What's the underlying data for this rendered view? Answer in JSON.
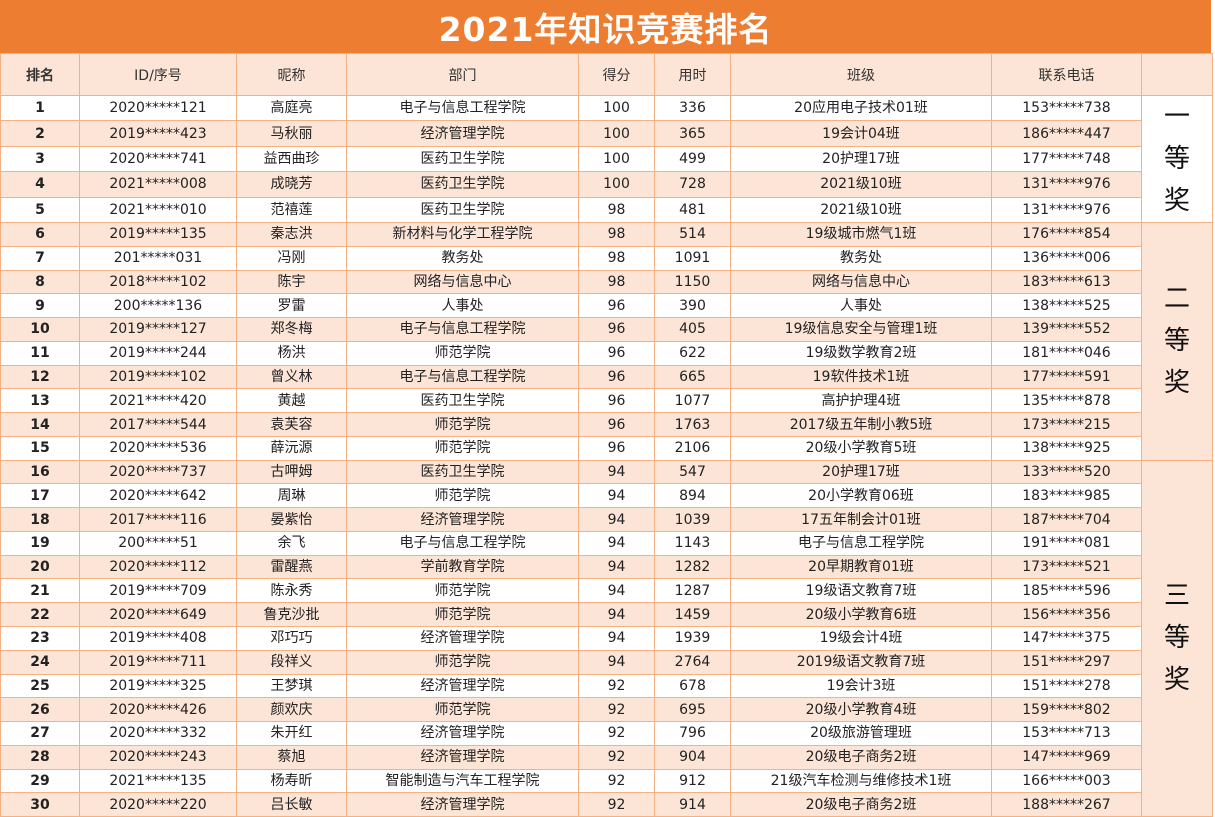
{
  "title": "2021年知识竞赛排名",
  "headers": {
    "rank": "排名",
    "id": "ID/序号",
    "name": "昵称",
    "dept": "部门",
    "score": "得分",
    "time": "用时",
    "class": "班级",
    "phone": "联系电话",
    "award": ""
  },
  "awards": {
    "first": "一\n等\n奖",
    "second": "二\n等\n奖",
    "third": "三\n等\n奖"
  },
  "rows": [
    {
      "rank": "1",
      "id": "2020*****121",
      "name": "高庭亮",
      "dept": "电子与信息工程学院",
      "score": "100",
      "time": "336",
      "class": "20应用电子技术01班",
      "phone": "153*****738"
    },
    {
      "rank": "2",
      "id": "2019*****423",
      "name": "马秋丽",
      "dept": "经济管理学院",
      "score": "100",
      "time": "365",
      "class": "19会计04班",
      "phone": "186*****447"
    },
    {
      "rank": "3",
      "id": "2020*****741",
      "name": "益西曲珍",
      "dept": "医药卫生学院",
      "score": "100",
      "time": "499",
      "class": "20护理17班",
      "phone": "177*****748"
    },
    {
      "rank": "4",
      "id": "2021*****008",
      "name": "成晓芳",
      "dept": "医药卫生学院",
      "score": "100",
      "time": "728",
      "class": "2021级10班",
      "phone": "131*****976"
    },
    {
      "rank": "5",
      "id": "2021*****010",
      "name": "范禧莲",
      "dept": "医药卫生学院",
      "score": "98",
      "time": "481",
      "class": "2021级10班",
      "phone": "131*****976"
    },
    {
      "rank": "6",
      "id": "2019*****135",
      "name": "秦志洪",
      "dept": "新材料与化学工程学院",
      "score": "98",
      "time": "514",
      "class": "19级城市燃气1班",
      "phone": "176*****854"
    },
    {
      "rank": "7",
      "id": "201*****031",
      "name": "冯刚",
      "dept": "教务处",
      "score": "98",
      "time": "1091",
      "class": "教务处",
      "phone": "136*****006"
    },
    {
      "rank": "8",
      "id": "2018*****102",
      "name": "陈宇",
      "dept": "网络与信息中心",
      "score": "98",
      "time": "1150",
      "class": "网络与信息中心",
      "phone": "183*****613"
    },
    {
      "rank": "9",
      "id": "200*****136",
      "name": "罗雷",
      "dept": "人事处",
      "score": "96",
      "time": "390",
      "class": "人事处",
      "phone": "138*****525"
    },
    {
      "rank": "10",
      "id": "2019*****127",
      "name": "郑冬梅",
      "dept": "电子与信息工程学院",
      "score": "96",
      "time": "405",
      "class": "19级信息安全与管理1班",
      "phone": "139*****552"
    },
    {
      "rank": "11",
      "id": "2019*****244",
      "name": "杨洪",
      "dept": "师范学院",
      "score": "96",
      "time": "622",
      "class": "19级数学教育2班",
      "phone": "181*****046"
    },
    {
      "rank": "12",
      "id": "2019*****102",
      "name": "曾义林",
      "dept": "电子与信息工程学院",
      "score": "96",
      "time": "665",
      "class": "19软件技术1班",
      "phone": "177*****591"
    },
    {
      "rank": "13",
      "id": "2021*****420",
      "name": "黄越",
      "dept": "医药卫生学院",
      "score": "96",
      "time": "1077",
      "class": "高护护理4班",
      "phone": "135*****878"
    },
    {
      "rank": "14",
      "id": "2017*****544",
      "name": "袁芙容",
      "dept": "师范学院",
      "score": "96",
      "time": "1763",
      "class": "2017级五年制小教5班",
      "phone": "173*****215"
    },
    {
      "rank": "15",
      "id": "2020*****536",
      "name": "薛沅源",
      "dept": "师范学院",
      "score": "96",
      "time": "2106",
      "class": "20级小学教育5班",
      "phone": "138*****925"
    },
    {
      "rank": "16",
      "id": "2020*****737",
      "name": "古呷姆",
      "dept": "医药卫生学院",
      "score": "94",
      "time": "547",
      "class": "20护理17班",
      "phone": "133*****520"
    },
    {
      "rank": "17",
      "id": "2020*****642",
      "name": "周琳",
      "dept": "师范学院",
      "score": "94",
      "time": "894",
      "class": "20小学教育06班",
      "phone": "183*****985"
    },
    {
      "rank": "18",
      "id": "2017*****116",
      "name": "晏紫怡",
      "dept": "经济管理学院",
      "score": "94",
      "time": "1039",
      "class": "17五年制会计01班",
      "phone": "187*****704"
    },
    {
      "rank": "19",
      "id": "200*****51",
      "name": "余飞",
      "dept": "电子与信息工程学院",
      "score": "94",
      "time": "1143",
      "class": "电子与信息工程学院",
      "phone": "191*****081"
    },
    {
      "rank": "20",
      "id": "2020*****112",
      "name": "雷醒燕",
      "dept": "学前教育学院",
      "score": "94",
      "time": "1282",
      "class": "20早期教育01班",
      "phone": "173*****521"
    },
    {
      "rank": "21",
      "id": "2019*****709",
      "name": "陈永秀",
      "dept": "师范学院",
      "score": "94",
      "time": "1287",
      "class": "19级语文教育7班",
      "phone": "185*****596"
    },
    {
      "rank": "22",
      "id": "2020*****649",
      "name": "鲁克沙批",
      "dept": "师范学院",
      "score": "94",
      "time": "1459",
      "class": "20级小学教育6班",
      "phone": "156*****356"
    },
    {
      "rank": "23",
      "id": "2019*****408",
      "name": "邓巧巧",
      "dept": "经济管理学院",
      "score": "94",
      "time": "1939",
      "class": "19级会计4班",
      "phone": "147*****375"
    },
    {
      "rank": "24",
      "id": "2019*****711",
      "name": "段祥义",
      "dept": "师范学院",
      "score": "94",
      "time": "2764",
      "class": "2019级语文教育7班",
      "phone": "151*****297"
    },
    {
      "rank": "25",
      "id": "2019*****325",
      "name": "王梦琪",
      "dept": "经济管理学院",
      "score": "92",
      "time": "678",
      "class": "19会计3班",
      "phone": "151*****278"
    },
    {
      "rank": "26",
      "id": "2020*****426",
      "name": "颜欢庆",
      "dept": "师范学院",
      "score": "92",
      "time": "695",
      "class": "20级小学教育4班",
      "phone": "159*****802"
    },
    {
      "rank": "27",
      "id": "2020*****332",
      "name": "朱开红",
      "dept": "经济管理学院",
      "score": "92",
      "time": "796",
      "class": "20级旅游管理班",
      "phone": "153*****713"
    },
    {
      "rank": "28",
      "id": "2020*****243",
      "name": "蔡旭",
      "dept": "经济管理学院",
      "score": "92",
      "time": "904",
      "class": "20级电子商务2班",
      "phone": "147*****969"
    },
    {
      "rank": "29",
      "id": "2021*****135",
      "name": "杨寿昕",
      "dept": "智能制造与汽车工程学院",
      "score": "92",
      "time": "912",
      "class": "21级汽车检测与维修技术1班",
      "phone": "166*****003"
    },
    {
      "rank": "30",
      "id": "2020*****220",
      "name": "吕长敏",
      "dept": "经济管理学院",
      "score": "92",
      "time": "914",
      "class": "20级电子商务2班",
      "phone": "188*****267"
    }
  ],
  "award_groups": [
    {
      "key": "first",
      "start": 0,
      "span": 5
    },
    {
      "key": "second",
      "start": 5,
      "span": 10
    },
    {
      "key": "third",
      "start": 15,
      "span": 15
    }
  ]
}
